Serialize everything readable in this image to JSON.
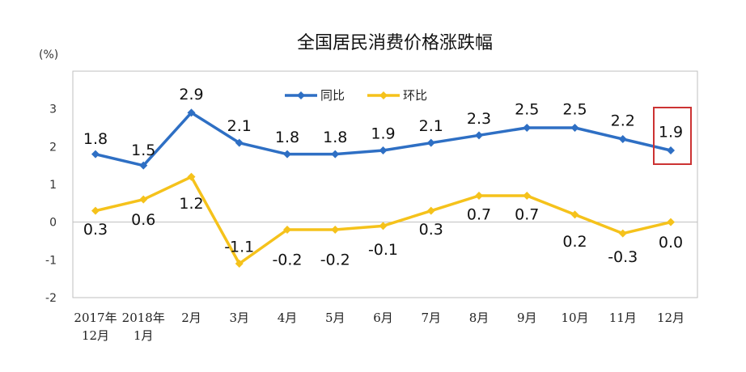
{
  "chart_data": {
    "type": "line",
    "title": "全国居民消费价格涨跌幅",
    "ylabel": "(%)",
    "xlabel": "",
    "ylim": [
      -2,
      4
    ],
    "yticks": [
      "-2",
      "-1",
      "0",
      "1",
      "2",
      "3"
    ],
    "categories": [
      [
        "2017年",
        "12月"
      ],
      [
        "2018年",
        "1月"
      ],
      [
        "2月"
      ],
      [
        "3月"
      ],
      [
        "4月"
      ],
      [
        "5月"
      ],
      [
        "6月"
      ],
      [
        "7月"
      ],
      [
        "8月"
      ],
      [
        "9月"
      ],
      [
        "10月"
      ],
      [
        "11月"
      ],
      [
        "12月"
      ]
    ],
    "series": [
      {
        "name": "同比",
        "color": "#2e6fc4",
        "values": [
          1.8,
          1.5,
          2.9,
          2.1,
          1.8,
          1.8,
          1.9,
          2.1,
          2.3,
          2.5,
          2.5,
          2.2,
          1.9
        ],
        "labels": [
          "1.8",
          "1.5",
          "2.9",
          "2.1",
          "1.8",
          "1.8",
          "1.9",
          "2.1",
          "2.3",
          "2.5",
          "2.5",
          "2.2",
          "1.9"
        ]
      },
      {
        "name": "环比",
        "color": "#f5c21b",
        "values": [
          0.3,
          0.6,
          1.2,
          -1.1,
          -0.2,
          -0.2,
          -0.1,
          0.3,
          0.7,
          0.7,
          0.2,
          -0.3,
          0.0
        ],
        "labels": [
          "0.3",
          "0.6",
          "1.2",
          "-1.1",
          "-0.2",
          "-0.2",
          "-0.1",
          "0.3",
          "0.7",
          "0.7",
          "0.2",
          "-0.3",
          "0.0"
        ]
      }
    ],
    "grid": false,
    "legend_position": "top-center",
    "highlight": {
      "series": 0,
      "index": 12,
      "color": "#cc3333"
    }
  }
}
